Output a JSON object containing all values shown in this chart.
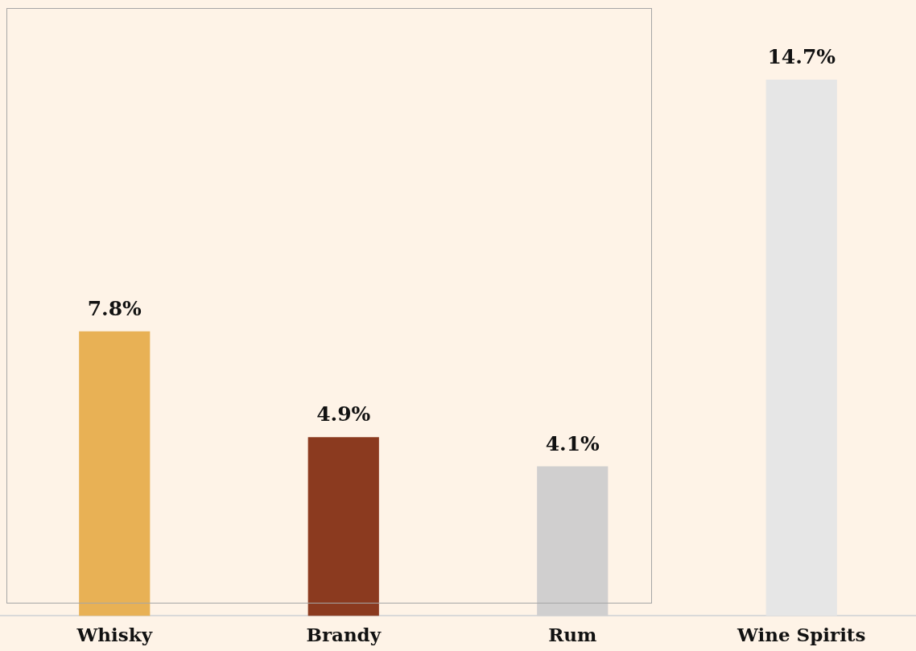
{
  "chart_data": {
    "type": "bar",
    "categories": [
      "Whisky",
      "Brandy",
      "Rum",
      "Wine Spirits"
    ],
    "values": [
      7.8,
      4.9,
      4.1,
      14.7
    ],
    "colors": [
      "#e8b155",
      "#8b3a1f",
      "#d0cfcf",
      "#e6e6e6"
    ],
    "value_labels": [
      "7.8%",
      "4.9%",
      "4.1%",
      "14.7%"
    ],
    "grid": false,
    "legend": false
  }
}
